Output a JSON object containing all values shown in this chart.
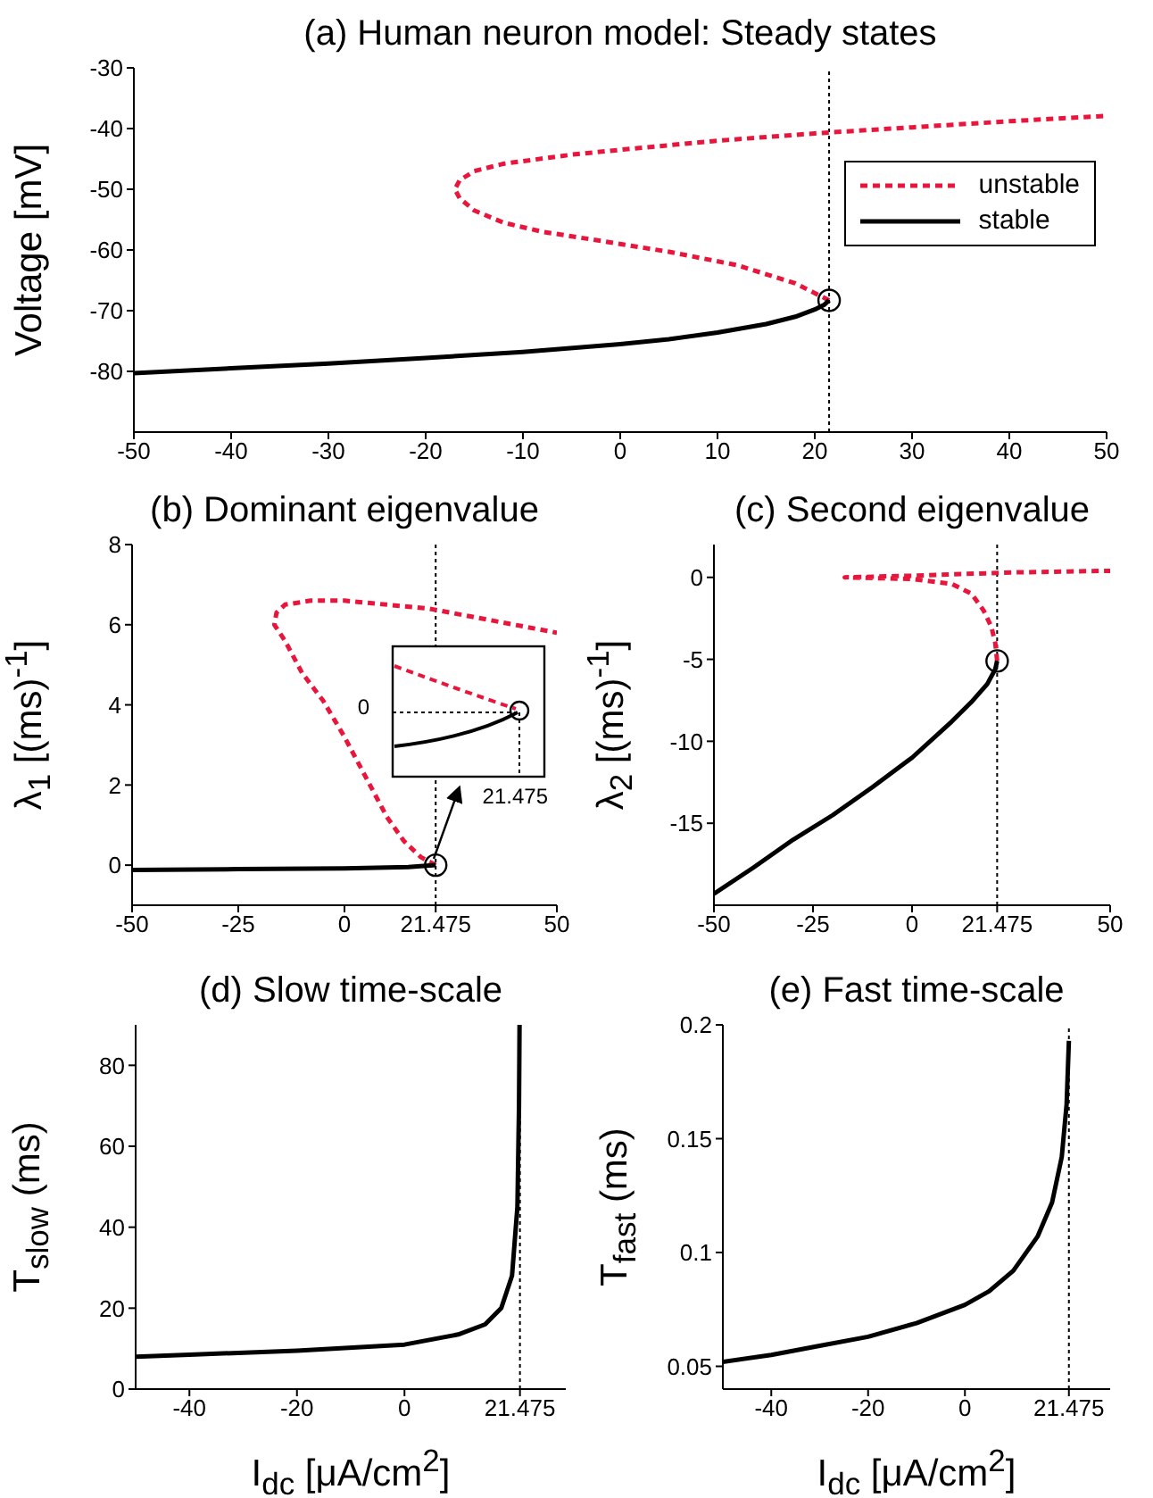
{
  "chart_data": [
    {
      "type": "line",
      "title": "(a) Human neuron model: Steady states",
      "ylabel": "Voltage  [mV]",
      "xlim": [
        -50,
        50
      ],
      "xticks": [
        -50,
        -40,
        -30,
        -20,
        -10,
        0,
        10,
        20,
        30,
        40,
        50
      ],
      "ylim": [
        -90,
        -30
      ],
      "yticks": [
        -30,
        -40,
        -50,
        -60,
        -70,
        -80
      ],
      "legend": "top right",
      "ref_lines": [
        {
          "axis": "x",
          "value": 21.475,
          "line_style": "dotted",
          "color": "#000000"
        }
      ],
      "series": [
        {
          "name": "unstable",
          "color": "#e8163c",
          "line_style": "dashed",
          "x": [
            21.475,
            18,
            12,
            5,
            -2,
            -8,
            -12,
            -15,
            -16.5,
            -17,
            -16.5,
            -15,
            -12,
            -5,
            0,
            10,
            20,
            30,
            40,
            50
          ],
          "values": [
            -68.3,
            -65.5,
            -62.5,
            -60.3,
            -58.5,
            -57,
            -55.5,
            -53.5,
            -51.5,
            -50,
            -48.5,
            -47,
            -45.8,
            -44.3,
            -43.5,
            -42,
            -40.8,
            -39.8,
            -38.8,
            -37.9
          ]
        },
        {
          "name": "stable",
          "color": "#000000",
          "line_style": "solid",
          "x": [
            -50,
            -40,
            -30,
            -20,
            -10,
            0,
            5,
            10,
            15,
            18,
            20,
            21,
            21.475
          ],
          "values": [
            -80.3,
            -79.5,
            -78.7,
            -77.8,
            -76.8,
            -75.5,
            -74.7,
            -73.6,
            -72.2,
            -71,
            -69.8,
            -69,
            -68.3
          ]
        },
        {
          "type": "scatter",
          "marker": "circle",
          "color": "#000000",
          "x": [
            21.475
          ],
          "values": [
            -68.3
          ]
        }
      ]
    },
    {
      "type": "line",
      "title": "(b) Dominant eigenvalue",
      "ylabel": "λ$_{1}$  [(ms)$^{-1}$]",
      "xlim": [
        -50,
        50
      ],
      "xticks": [
        -50,
        -25,
        0,
        21.475,
        50
      ],
      "ylim": [
        -1,
        8
      ],
      "yticks": [
        0,
        2,
        4,
        6,
        8
      ],
      "ref_lines": [
        {
          "axis": "x",
          "value": 21.475,
          "line_style": "dotted",
          "color": "#000000"
        }
      ],
      "series": [
        {
          "color": "#e8163c",
          "line_style": "dashed",
          "x": [
            21.475,
            18,
            14,
            10,
            5,
            0,
            -5,
            -10,
            -14,
            -16.5,
            -16,
            -14,
            -8,
            0,
            10,
            20,
            30,
            40,
            50
          ],
          "values": [
            0,
            0.2,
            0.6,
            1.2,
            2.2,
            3.2,
            4.1,
            4.8,
            5.6,
            6,
            6.3,
            6.5,
            6.6,
            6.6,
            6.5,
            6.4,
            6.2,
            6,
            5.8
          ]
        },
        {
          "color": "#000000",
          "line_style": "solid",
          "x": [
            -50,
            -25,
            0,
            15,
            21.475
          ],
          "values": [
            -0.12,
            -0.1,
            -0.08,
            -0.05,
            0
          ]
        },
        {
          "type": "scatter",
          "marker": "circle",
          "color": "#000000",
          "x": [
            21.475
          ],
          "values": [
            0
          ]
        }
      ]
    },
    {
      "type": "other",
      "annotations": [
        "0",
        "21.475"
      ]
    },
    {
      "type": "line",
      "title": "(c) Second eigenvalue",
      "ylabel": "λ$_{2}$  [(ms)$^{-1}$]",
      "xlim": [
        -50,
        50
      ],
      "xticks": [
        -50,
        -25,
        0,
        21.475,
        50
      ],
      "ylim": [
        -20,
        2
      ],
      "yticks": [
        0,
        -5,
        -10,
        -15
      ],
      "ref_lines": [
        {
          "axis": "x",
          "value": 21.475,
          "line_style": "dotted",
          "color": "#000000"
        }
      ],
      "series": [
        {
          "color": "#e8163c",
          "line_style": "dashed",
          "x": [
            21.475,
            21,
            20,
            18,
            15,
            10,
            0,
            -17,
            0,
            25,
            50
          ],
          "values": [
            -5.1,
            -4,
            -3,
            -2,
            -1,
            -0.4,
            -0.1,
            0,
            0.1,
            0.3,
            0.4
          ]
        },
        {
          "color": "#000000",
          "line_style": "solid",
          "x": [
            -50,
            -40,
            -30,
            -20,
            -10,
            0,
            10,
            15,
            19,
            21,
            21.475
          ],
          "values": [
            -19.3,
            -17.7,
            -16,
            -14.5,
            -12.8,
            -11,
            -8.8,
            -7.6,
            -6.5,
            -5.6,
            -5.1
          ]
        },
        {
          "type": "scatter",
          "marker": "circle",
          "color": "#000000",
          "x": [
            21.475
          ],
          "values": [
            -5.1
          ]
        }
      ]
    },
    {
      "type": "line",
      "title": "(d) Slow time-scale",
      "xlabel": "I$_{dc}$  [μA/cm$^{2}$]",
      "ylabel": "T$_{slow}$  (ms)",
      "xlim": [
        -50,
        30
      ],
      "xticks": [
        -40,
        -20,
        0,
        21.475
      ],
      "ylim": [
        0,
        90
      ],
      "yticks": [
        0,
        20,
        40,
        60,
        80
      ],
      "ref_lines": [
        {
          "axis": "x",
          "value": 21.475,
          "line_style": "dotted",
          "color": "#000000"
        }
      ],
      "series": [
        {
          "color": "#000000",
          "line_style": "solid",
          "x": [
            -50,
            -40,
            -20,
            0,
            10,
            15,
            18,
            20,
            21,
            21.3,
            21.4
          ],
          "values": [
            8,
            8.5,
            9.5,
            11,
            13.5,
            16,
            20,
            28,
            45,
            70,
            90
          ]
        }
      ]
    },
    {
      "type": "line",
      "title": "(e) Fast time-scale",
      "xlabel": "I$_{dc}$  [μA/cm$^{2}$]",
      "ylabel": "T$_{fast}$  (ms)",
      "xlim": [
        -50,
        30
      ],
      "xticks": [
        -40,
        -20,
        0,
        21.475
      ],
      "ylim": [
        0.04,
        0.2
      ],
      "yticks": [
        0.05,
        0.1,
        0.15,
        0.2
      ],
      "ref_lines": [
        {
          "axis": "x",
          "value": 21.475,
          "line_style": "dotted",
          "color": "#000000"
        }
      ],
      "series": [
        {
          "color": "#000000",
          "line_style": "solid",
          "x": [
            -50,
            -40,
            -30,
            -20,
            -10,
            0,
            5,
            10,
            15,
            18,
            20,
            21,
            21.475
          ],
          "values": [
            0.052,
            0.055,
            0.059,
            0.063,
            0.069,
            0.077,
            0.083,
            0.092,
            0.107,
            0.122,
            0.142,
            0.165,
            0.193
          ]
        }
      ]
    }
  ]
}
